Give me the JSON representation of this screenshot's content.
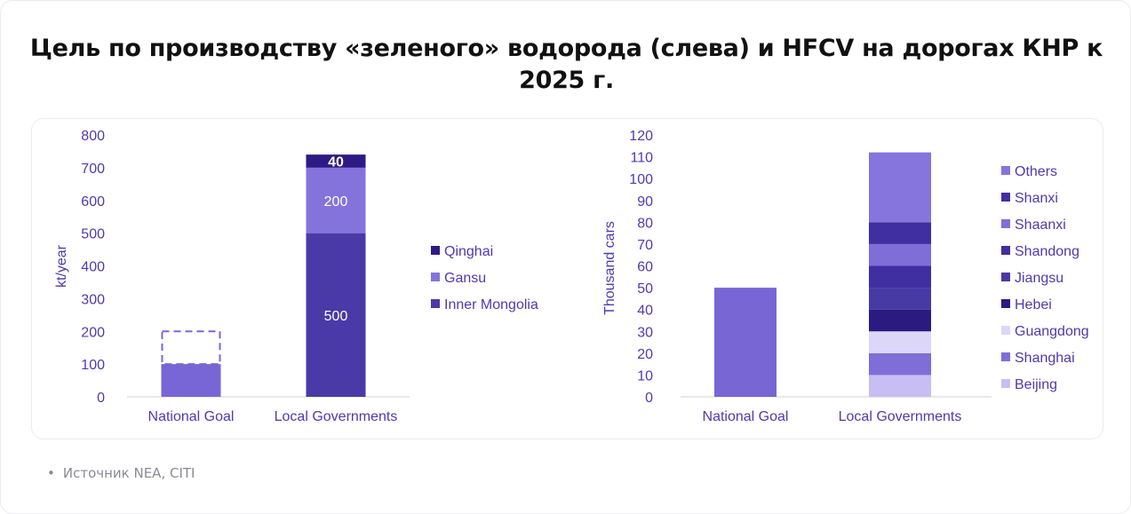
{
  "title": "Цель по производству «зеленого» водорода (слева) и HFCV на дорогах КНР к 2025 г.",
  "source": {
    "bullet": "•",
    "text": "Источник NEA, CITI"
  },
  "chart_data": [
    {
      "type": "bar",
      "stacked": true,
      "ylabel": "kt/year",
      "ylim": [
        0,
        800
      ],
      "yticks": [
        "0",
        "100",
        "200",
        "300",
        "400",
        "500",
        "600",
        "700",
        "800"
      ],
      "categories": [
        "National Goal",
        "Local Governments"
      ],
      "series": [
        {
          "name": "Inner Mongolia",
          "values": [
            null,
            500
          ],
          "labels": [
            "",
            "500"
          ],
          "color": "#4a3aa8"
        },
        {
          "name": "Gansu",
          "values": [
            null,
            200
          ],
          "labels": [
            "",
            "200"
          ],
          "color": "#8573dc"
        },
        {
          "name": "Qinghai",
          "values": [
            null,
            40
          ],
          "labels": [
            "",
            "40"
          ],
          "color": "#2e1a84"
        }
      ],
      "national": {
        "solid": 100,
        "dashed_target": 200,
        "color": "#7966d6"
      },
      "legend": [
        "Qinghai",
        "Gansu",
        "Inner Mongolia"
      ],
      "legend_position": "right",
      "grid": false
    },
    {
      "type": "bar",
      "stacked": true,
      "ylabel": "Thousand cars",
      "ylim": [
        0,
        120
      ],
      "yticks": [
        "0",
        "10",
        "20",
        "30",
        "40",
        "50",
        "60",
        "70",
        "80",
        "90",
        "100",
        "110",
        "120"
      ],
      "categories": [
        "National Goal",
        "Local Governments"
      ],
      "national": {
        "value": 50,
        "color": "#7766d4"
      },
      "series": [
        {
          "name": "Beijing",
          "values": [
            null,
            10
          ],
          "color": "#c9bef4"
        },
        {
          "name": "Shanghai",
          "values": [
            null,
            10
          ],
          "color": "#7f6ed8"
        },
        {
          "name": "Guangdong",
          "values": [
            null,
            10
          ],
          "color": "#dcd6f8"
        },
        {
          "name": "Hebei",
          "values": [
            null,
            10
          ],
          "color": "#2b1a80"
        },
        {
          "name": "Jiangsu",
          "values": [
            null,
            10
          ],
          "color": "#483aa4"
        },
        {
          "name": "Shandong",
          "values": [
            null,
            10
          ],
          "color": "#3f2fa0"
        },
        {
          "name": "Shaanxi",
          "values": [
            null,
            10
          ],
          "color": "#7f6ed8"
        },
        {
          "name": "Shanxi",
          "values": [
            null,
            10
          ],
          "color": "#3f2fa0"
        },
        {
          "name": "Others",
          "values": [
            null,
            32
          ],
          "color": "#8575dc"
        }
      ],
      "legend": [
        "Others",
        "Shanxi",
        "Shaanxi",
        "Shandong",
        "Jiangsu",
        "Hebei",
        "Guangdong",
        "Shanghai",
        "Beijing"
      ],
      "legend_position": "right",
      "grid": false
    }
  ],
  "colors": {
    "axis_text": "#4b3bb0",
    "axis_line": "#d2d2d8",
    "bar_label": "#ffffff"
  }
}
